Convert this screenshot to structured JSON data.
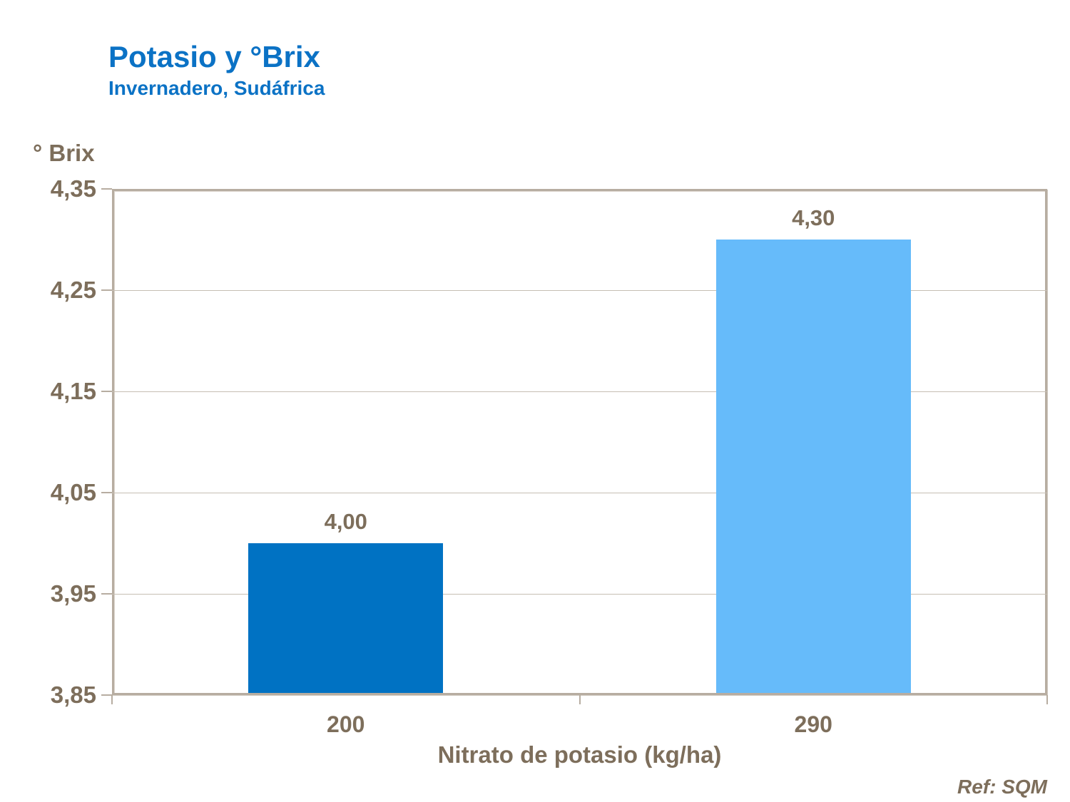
{
  "title": {
    "main": "Potasio y °Brix",
    "subtitle": "Invernadero, Sudáfrica"
  },
  "footer": {
    "ref": "Ref: SQM"
  },
  "colors": {
    "title_blue": "#0b72c5",
    "axis_text_brown": "#7d6e5b",
    "frame_gray": "#b7ada1",
    "gridline_gray": "#c6beb3",
    "bar_dark_blue": "#0072c3",
    "bar_light_blue": "#66bbfa"
  },
  "chart_data": {
    "type": "bar",
    "title": "Potasio y °Brix",
    "subtitle": "Invernadero, Sudáfrica",
    "xlabel": "Nitrato de potasio (kg/ha)",
    "ylabel": "° Brix",
    "categories": [
      "200",
      "290"
    ],
    "values": [
      4.0,
      4.3
    ],
    "value_labels": [
      "4,00",
      "4,30"
    ],
    "bar_colors": [
      "#0072c3",
      "#66bbfa"
    ],
    "ylim": [
      3.85,
      4.35
    ],
    "yticks": [
      {
        "value": 4.35,
        "label": "4,35"
      },
      {
        "value": 4.25,
        "label": "4,25"
      },
      {
        "value": 4.15,
        "label": "4,15"
      },
      {
        "value": 4.05,
        "label": "4,05"
      },
      {
        "value": 3.95,
        "label": "3,95"
      },
      {
        "value": 3.85,
        "label": "3,85"
      }
    ],
    "grid": true,
    "legend": "none"
  }
}
